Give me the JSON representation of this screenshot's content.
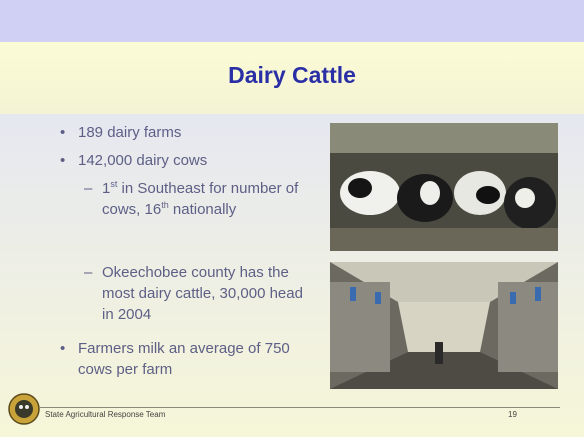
{
  "slide": {
    "title": "Dairy Cattle",
    "bullets": [
      {
        "text": "189 dairy farms"
      },
      {
        "text": "142,000 dairy cows",
        "sub": [
          {
            "parts": [
              {
                "text": "1"
              },
              {
                "text": "st",
                "sup": true
              },
              {
                "text": " in Southeast for number of cows, 16"
              },
              {
                "text": "th",
                "sup": true
              },
              {
                "text": " nationally"
              }
            ]
          },
          {
            "parts": [
              {
                "text": "Okeechobee county has the most dairy cattle, 30,000 head in 2004"
              }
            ]
          }
        ]
      },
      {
        "text": "Farmers milk an average of 750 cows per farm"
      }
    ],
    "footer": {
      "organization": "State Agricultural Response Team",
      "page": "19"
    }
  }
}
